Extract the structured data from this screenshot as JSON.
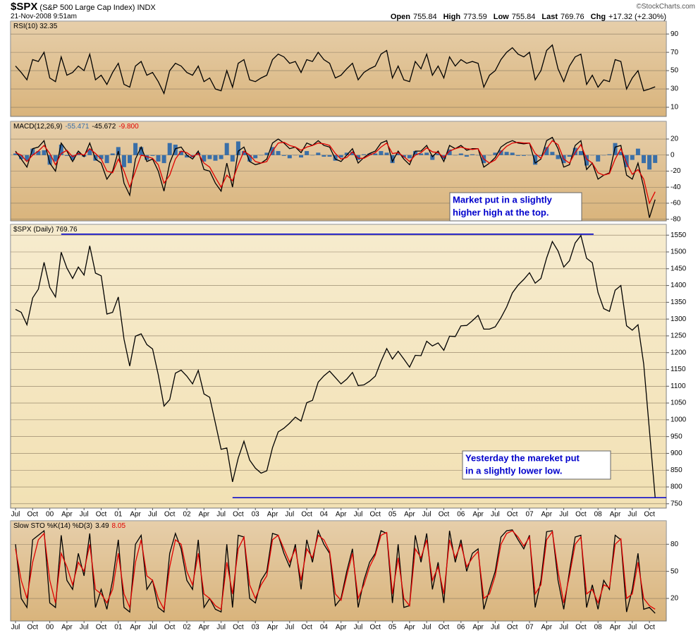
{
  "header": {
    "symbol": "$SPX",
    "name": "(S&P 500 Large Cap Index)",
    "exchange": "INDX",
    "date": "21-Nov-2008 9:51am",
    "quote": [
      {
        "label": "Open",
        "value": 755.84
      },
      {
        "label": "High",
        "value": 773.59
      },
      {
        "label": "Low",
        "value": 755.84
      },
      {
        "label": "Last",
        "value": 769.76
      },
      {
        "label": "Chg",
        "value": "+17.32 (+2.30%)"
      }
    ],
    "copyright": "©StockCharts.com"
  },
  "chart_data": [
    {
      "type": "line",
      "label": "RSI(10) 32.35",
      "background": "#d9b47c",
      "grid": true,
      "ylim": [
        0,
        104
      ],
      "yticks": [
        90,
        70,
        50,
        30,
        10
      ],
      "series": [
        {
          "color": "#000000",
          "values": [
            55,
            48,
            40,
            62,
            60,
            70,
            42,
            38,
            65,
            45,
            48,
            55,
            50,
            68,
            40,
            45,
            35,
            48,
            58,
            35,
            32,
            55,
            60,
            45,
            48,
            38,
            25,
            50,
            58,
            55,
            48,
            45,
            55,
            38,
            42,
            30,
            28,
            50,
            32,
            58,
            62,
            40,
            38,
            42,
            45,
            62,
            68,
            65,
            58,
            60,
            48,
            62,
            60,
            70,
            62,
            58,
            42,
            45,
            52,
            58,
            40,
            48,
            52,
            55,
            68,
            72,
            42,
            55,
            40,
            38,
            60,
            52,
            68,
            45,
            55,
            42,
            65,
            55,
            62,
            58,
            60,
            58,
            32,
            45,
            50,
            62,
            70,
            75,
            68,
            65,
            70,
            40,
            50,
            72,
            78,
            52,
            38,
            55,
            65,
            68,
            35,
            45,
            32,
            40,
            38,
            62,
            60,
            30,
            42,
            50,
            28,
            30,
            32.35
          ]
        }
      ]
    },
    {
      "type": "line",
      "label": "MACD(12,26,9)",
      "label_values": [
        "-55.471",
        "-45.672",
        "-9.800"
      ],
      "background": "#d9b47c",
      "grid": true,
      "ylim": [
        -82,
        42
      ],
      "yticks": [
        20,
        0,
        -20,
        -40,
        -60,
        -80
      ],
      "series": [
        {
          "type": "bar",
          "color": "#3a6fa8",
          "values": [
            2,
            -5,
            -7,
            8,
            5,
            6,
            -12,
            -8,
            13,
            -1,
            -6,
            3,
            -2,
            7,
            -7,
            -5,
            -10,
            2,
            10,
            -15,
            -10,
            15,
            10,
            -6,
            -1,
            -8,
            -10,
            15,
            13,
            5,
            -3,
            -3,
            3,
            -8,
            -5,
            -7,
            -5,
            15,
            -8,
            17,
            5,
            -8,
            -4,
            0,
            3,
            10,
            5,
            -1,
            -4,
            0,
            -3,
            5,
            0,
            3,
            -2,
            -2,
            -7,
            -3,
            3,
            4,
            -6,
            1,
            2,
            2,
            5,
            3,
            -10,
            2,
            -3,
            -4,
            5,
            2,
            3,
            -6,
            2,
            -5,
            7,
            0,
            2,
            -2,
            1,
            0,
            -10,
            0,
            3,
            6,
            4,
            3,
            -1,
            -1,
            0,
            -12,
            -1,
            10,
            4,
            -5,
            -10,
            -2,
            9,
            5,
            -13,
            0,
            -8,
            0,
            1,
            15,
            4,
            -15,
            -6,
            8,
            -10,
            -18,
            -9.8
          ]
        },
        {
          "color": "#000000",
          "values": [
            5,
            -5,
            -15,
            8,
            10,
            18,
            -10,
            -20,
            15,
            5,
            -8,
            5,
            -2,
            15,
            -5,
            -10,
            -30,
            -20,
            5,
            -35,
            -50,
            -5,
            10,
            -8,
            -5,
            -20,
            -45,
            -10,
            8,
            10,
            0,
            -5,
            5,
            -18,
            -20,
            -35,
            -45,
            -10,
            -40,
            5,
            10,
            -8,
            -12,
            -10,
            -5,
            15,
            20,
            15,
            8,
            10,
            3,
            15,
            12,
            18,
            12,
            10,
            -5,
            -8,
            0,
            8,
            -10,
            -3,
            2,
            5,
            15,
            18,
            -8,
            5,
            -5,
            -12,
            5,
            5,
            12,
            -2,
            5,
            -8,
            12,
            8,
            12,
            6,
            8,
            8,
            -15,
            -10,
            -3,
            10,
            15,
            18,
            15,
            14,
            15,
            -10,
            -5,
            18,
            22,
            8,
            -15,
            -12,
            12,
            18,
            -18,
            -10,
            -30,
            -25,
            -22,
            10,
            12,
            -25,
            -30,
            -10,
            -40,
            -78,
            -55.471
          ]
        },
        {
          "color": "#e00000",
          "values": [
            3,
            0,
            -8,
            0,
            5,
            12,
            2,
            -12,
            2,
            6,
            -2,
            2,
            0,
            8,
            2,
            -5,
            -20,
            -22,
            -5,
            -20,
            -40,
            -20,
            0,
            -2,
            -4,
            -12,
            -35,
            -25,
            -5,
            5,
            3,
            -2,
            2,
            -10,
            -15,
            -28,
            -40,
            -25,
            -32,
            -12,
            5,
            0,
            -8,
            -10,
            -8,
            5,
            15,
            16,
            12,
            10,
            6,
            10,
            12,
            15,
            14,
            12,
            2,
            -5,
            -3,
            4,
            -4,
            -4,
            0,
            3,
            10,
            15,
            2,
            3,
            -2,
            -8,
            0,
            3,
            9,
            4,
            3,
            -3,
            5,
            8,
            10,
            8,
            7,
            8,
            -5,
            -10,
            -6,
            4,
            11,
            15,
            16,
            15,
            15,
            2,
            -4,
            8,
            18,
            13,
            -5,
            -10,
            3,
            13,
            -5,
            -10,
            -22,
            -25,
            -23,
            -5,
            8,
            -10,
            -24,
            -18,
            -30,
            -60,
            -45.672
          ]
        }
      ],
      "annotations": [
        {
          "lines": [
            "Market put in a slightly",
            "higher high at the top."
          ]
        }
      ]
    },
    {
      "type": "line",
      "label": "$SPX (Daily) 769.76",
      "background": "#f2e1b4",
      "grid": true,
      "ylim": [
        737,
        1582
      ],
      "yticks": [
        750,
        800,
        850,
        900,
        950,
        1000,
        1050,
        1100,
        1150,
        1200,
        1250,
        1300,
        1350,
        1400,
        1450,
        1500,
        1550
      ],
      "categories": [
        "Jul",
        null,
        null,
        "Oct",
        null,
        null,
        "00",
        null,
        null,
        "Apr",
        null,
        null,
        "Jul",
        null,
        null,
        "Oct",
        null,
        null,
        "01",
        null,
        null,
        "Apr",
        null,
        null,
        "Jul",
        null,
        null,
        "Oct",
        null,
        null,
        "02",
        null,
        null,
        "Apr",
        null,
        null,
        "Jul",
        null,
        null,
        "Oct",
        null,
        null,
        "03",
        null,
        null,
        "Apr",
        null,
        null,
        "Jul",
        null,
        null,
        "Oct",
        null,
        null,
        "04",
        null,
        null,
        "Apr",
        null,
        null,
        "Jul",
        null,
        null,
        "Oct",
        null,
        null,
        "05",
        null,
        null,
        "Apr",
        null,
        null,
        "Jul",
        null,
        null,
        "Oct",
        null,
        null,
        "06",
        null,
        null,
        "Apr",
        null,
        null,
        "Jul",
        null,
        null,
        "Oct",
        null,
        null,
        "07",
        null,
        null,
        "Apr",
        null,
        null,
        "Jul",
        null,
        null,
        "Oct",
        null,
        null,
        "08",
        null,
        null,
        "Apr",
        null,
        null,
        "Jul",
        null,
        null,
        "Oct",
        null
      ],
      "series": [
        {
          "color": "#000000",
          "values": [
            1329,
            1320,
            1283,
            1363,
            1389,
            1469,
            1394,
            1366,
            1499,
            1452,
            1421,
            1455,
            1431,
            1518,
            1437,
            1429,
            1315,
            1320,
            1366,
            1240,
            1160,
            1249,
            1256,
            1224,
            1211,
            1134,
            1041,
            1060,
            1139,
            1148,
            1130,
            1107,
            1147,
            1077,
            1067,
            990,
            912,
            916,
            815,
            886,
            936,
            880,
            856,
            841,
            848,
            917,
            964,
            975,
            990,
            1008,
            996,
            1051,
            1058,
            1112,
            1131,
            1145,
            1126,
            1107,
            1121,
            1141,
            1102,
            1104,
            1115,
            1130,
            1174,
            1212,
            1181,
            1204,
            1181,
            1157,
            1192,
            1191,
            1234,
            1220,
            1229,
            1207,
            1249,
            1248,
            1280,
            1281,
            1295,
            1311,
            1270,
            1270,
            1277,
            1304,
            1336,
            1378,
            1401,
            1418,
            1438,
            1407,
            1421,
            1482,
            1531,
            1503,
            1455,
            1474,
            1527,
            1549,
            1481,
            1468,
            1379,
            1331,
            1323,
            1386,
            1400,
            1280,
            1267,
            1283,
            1166,
            969,
            769.76
          ]
        }
      ],
      "hlines": [
        {
          "value": 1553,
          "color": "#0000cc"
        },
        {
          "value": 768,
          "color": "#0000cc"
        }
      ],
      "annotations": [
        {
          "lines": [
            "Yesterday the mareket put",
            "in a slightly lower low."
          ]
        }
      ]
    },
    {
      "type": "line",
      "label": "Slow STO %K(14) %D(3)",
      "label_values": [
        "3.49",
        "8.05"
      ],
      "background": "#d9b47c",
      "grid": true,
      "ylim": [
        -5,
        106
      ],
      "yticks": [
        80,
        50,
        20
      ],
      "categories": [
        "Jul",
        null,
        null,
        "Oct",
        null,
        null,
        "00",
        null,
        null,
        "Apr",
        null,
        null,
        "Jul",
        null,
        null,
        "Oct",
        null,
        null,
        "01",
        null,
        null,
        "Apr",
        null,
        null,
        "Jul",
        null,
        null,
        "Oct",
        null,
        null,
        "02",
        null,
        null,
        "Apr",
        null,
        null,
        "Jul",
        null,
        null,
        "Oct",
        null,
        null,
        "03",
        null,
        null,
        "Apr",
        null,
        null,
        "Jul",
        null,
        null,
        "Oct",
        null,
        null,
        "04",
        null,
        null,
        "Apr",
        null,
        null,
        "Jul",
        null,
        null,
        "Oct",
        null,
        null,
        "05",
        null,
        null,
        "Apr",
        null,
        null,
        "Jul",
        null,
        null,
        "Oct",
        null,
        null,
        "06",
        null,
        null,
        "Apr",
        null,
        null,
        "Jul",
        null,
        null,
        "Oct",
        null,
        null,
        "07",
        null,
        null,
        "Apr",
        null,
        null,
        "Jul",
        null,
        null,
        "Oct",
        null,
        null,
        "08",
        null,
        null,
        "Apr",
        null,
        null,
        "Jul",
        null,
        null,
        "Oct",
        null
      ],
      "series": [
        {
          "color": "#000000",
          "values": [
            80,
            20,
            10,
            85,
            90,
            95,
            15,
            10,
            90,
            40,
            30,
            70,
            45,
            92,
            10,
            30,
            8,
            40,
            85,
            10,
            5,
            80,
            90,
            30,
            40,
            10,
            5,
            70,
            92,
            75,
            40,
            30,
            85,
            10,
            20,
            8,
            5,
            80,
            10,
            90,
            88,
            20,
            15,
            40,
            50,
            92,
            90,
            70,
            55,
            80,
            30,
            85,
            60,
            95,
            80,
            70,
            12,
            20,
            50,
            75,
            10,
            40,
            60,
            70,
            95,
            92,
            15,
            80,
            10,
            12,
            90,
            60,
            92,
            30,
            60,
            15,
            95,
            60,
            85,
            50,
            70,
            75,
            8,
            30,
            50,
            88,
            95,
            96,
            85,
            75,
            90,
            10,
            40,
            94,
            95,
            40,
            8,
            50,
            88,
            90,
            10,
            35,
            8,
            40,
            30,
            90,
            85,
            5,
            30,
            70,
            8,
            10,
            3.49
          ]
        },
        {
          "color": "#e00000",
          "values": [
            75,
            40,
            20,
            60,
            85,
            92,
            40,
            15,
            70,
            55,
            35,
            60,
            50,
            80,
            30,
            25,
            15,
            30,
            70,
            25,
            10,
            60,
            85,
            45,
            40,
            20,
            8,
            55,
            85,
            80,
            50,
            35,
            70,
            25,
            20,
            12,
            8,
            60,
            25,
            75,
            88,
            35,
            20,
            35,
            45,
            85,
            90,
            75,
            60,
            75,
            40,
            75,
            65,
            90,
            85,
            72,
            25,
            18,
            45,
            70,
            20,
            35,
            55,
            68,
            90,
            93,
            25,
            65,
            20,
            12,
            75,
            65,
            85,
            40,
            55,
            25,
            85,
            65,
            80,
            55,
            65,
            72,
            20,
            25,
            45,
            80,
            92,
            95,
            88,
            78,
            88,
            25,
            35,
            85,
            94,
            50,
            15,
            45,
            80,
            88,
            25,
            30,
            15,
            35,
            32,
            80,
            86,
            20,
            25,
            60,
            20,
            12,
            8.05
          ]
        }
      ]
    }
  ]
}
